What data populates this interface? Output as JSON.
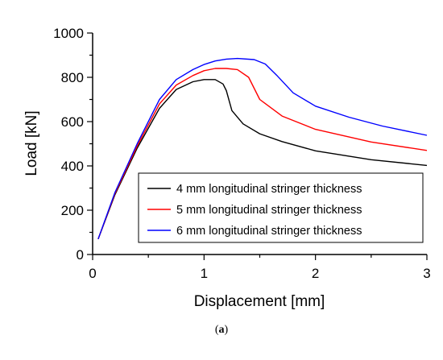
{
  "caption": {
    "prefix": "(",
    "letter": "a",
    "suffix": ")"
  },
  "chart_data": {
    "type": "line",
    "xlabel": "Displacement [mm]",
    "ylabel": "Load [kN]",
    "xlim": [
      0,
      3
    ],
    "ylim": [
      0,
      1000
    ],
    "xticks": [
      "0",
      "1",
      "2",
      "3"
    ],
    "yticks": [
      "0",
      "200",
      "400",
      "600",
      "800",
      "1000"
    ],
    "grid": false,
    "legend_position": "lower-right",
    "series": [
      {
        "name": "4 mm longitudinal stringer thickness",
        "color": "#000000",
        "points": [
          [
            0.05,
            70
          ],
          [
            0.2,
            270
          ],
          [
            0.4,
            480
          ],
          [
            0.6,
            660
          ],
          [
            0.75,
            745
          ],
          [
            0.9,
            780
          ],
          [
            1.0,
            790
          ],
          [
            1.1,
            790
          ],
          [
            1.17,
            770
          ],
          [
            1.2,
            740
          ],
          [
            1.25,
            650
          ],
          [
            1.35,
            590
          ],
          [
            1.5,
            545
          ],
          [
            1.7,
            510
          ],
          [
            2.0,
            468
          ],
          [
            2.5,
            428
          ],
          [
            3.0,
            402
          ]
        ]
      },
      {
        "name": "5 mm longitudinal stringer thickness",
        "color": "#ff0000",
        "points": [
          [
            0.05,
            70
          ],
          [
            0.2,
            275
          ],
          [
            0.4,
            490
          ],
          [
            0.6,
            680
          ],
          [
            0.75,
            765
          ],
          [
            0.9,
            808
          ],
          [
            1.0,
            830
          ],
          [
            1.1,
            840
          ],
          [
            1.2,
            840
          ],
          [
            1.3,
            835
          ],
          [
            1.4,
            800
          ],
          [
            1.5,
            700
          ],
          [
            1.7,
            625
          ],
          [
            2.0,
            565
          ],
          [
            2.5,
            508
          ],
          [
            3.0,
            470
          ]
        ]
      },
      {
        "name": "6 mm longitudinal stringer thickness",
        "color": "#0000ff",
        "points": [
          [
            0.05,
            70
          ],
          [
            0.2,
            280
          ],
          [
            0.4,
            500
          ],
          [
            0.6,
            700
          ],
          [
            0.75,
            790
          ],
          [
            0.9,
            835
          ],
          [
            1.0,
            858
          ],
          [
            1.1,
            874
          ],
          [
            1.2,
            882
          ],
          [
            1.3,
            885
          ],
          [
            1.45,
            880
          ],
          [
            1.55,
            860
          ],
          [
            1.65,
            810
          ],
          [
            1.8,
            730
          ],
          [
            2.0,
            670
          ],
          [
            2.3,
            620
          ],
          [
            2.6,
            580
          ],
          [
            3.0,
            538
          ]
        ]
      }
    ]
  }
}
